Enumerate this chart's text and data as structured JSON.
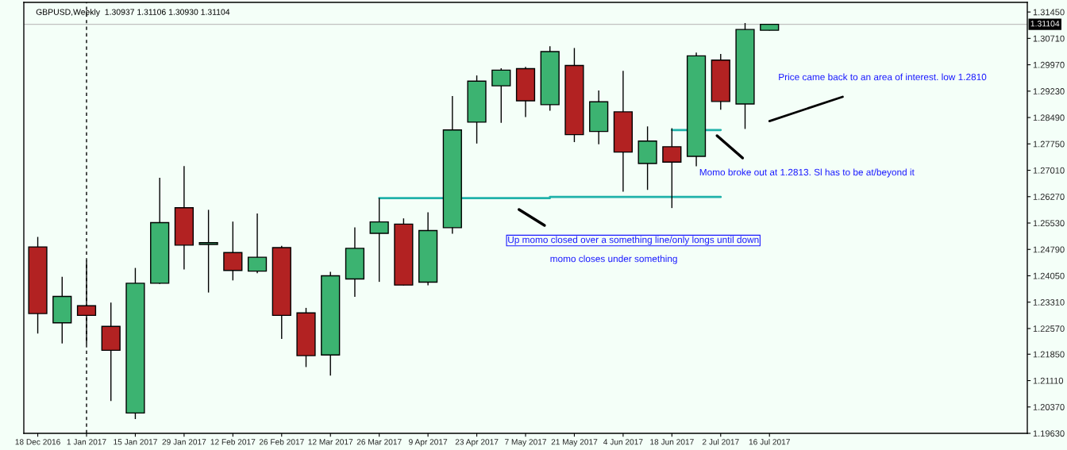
{
  "chart_data": {
    "type": "candlestick",
    "title": "GBPUSD,Weekly  1.30937 1.31106 1.30930 1.31104",
    "x": [
      "2016-12-18",
      "2016-12-25",
      "2017-01-01",
      "2017-01-08",
      "2017-01-15",
      "2017-01-22",
      "2017-01-29",
      "2017-02-05",
      "2017-02-12",
      "2017-02-19",
      "2017-02-26",
      "2017-03-05",
      "2017-03-12",
      "2017-03-19",
      "2017-03-26",
      "2017-04-02",
      "2017-04-09",
      "2017-04-16",
      "2017-04-23",
      "2017-04-30",
      "2017-05-07",
      "2017-05-14",
      "2017-05-21",
      "2017-05-28",
      "2017-06-04",
      "2017-06-11",
      "2017-06-18",
      "2017-06-25",
      "2017-07-02",
      "2017-07-09",
      "2017-07-16"
    ],
    "ohlc": [
      [
        1.2486,
        1.2514,
        1.2243,
        1.2299
      ],
      [
        1.2273,
        1.2402,
        1.2215,
        1.2347
      ],
      [
        1.2321,
        1.2447,
        1.2213,
        1.2294
      ],
      [
        1.2263,
        1.233,
        1.2054,
        1.2196
      ],
      [
        1.202,
        1.2427,
        1.2003,
        1.2384
      ],
      [
        1.2384,
        1.268,
        1.2382,
        1.2554
      ],
      [
        1.2596,
        1.2713,
        1.2423,
        1.2491
      ],
      [
        1.2493,
        1.259,
        1.2358,
        1.2498
      ],
      [
        1.247,
        1.2557,
        1.2392,
        1.242
      ],
      [
        1.2418,
        1.258,
        1.2412,
        1.2457
      ],
      [
        1.2484,
        1.2489,
        1.2228,
        1.2294
      ],
      [
        1.2301,
        1.2315,
        1.2149,
        1.2181
      ],
      [
        1.2183,
        1.2416,
        1.2125,
        1.2405
      ],
      [
        1.2396,
        1.2541,
        1.2346,
        1.2482
      ],
      [
        1.2524,
        1.2623,
        1.2388,
        1.2556
      ],
      [
        1.255,
        1.2566,
        1.2378,
        1.2379
      ],
      [
        1.2387,
        1.2583,
        1.2378,
        1.2532
      ],
      [
        1.254,
        1.2909,
        1.2523,
        1.2814
      ],
      [
        1.2836,
        1.2967,
        1.2776,
        1.2951
      ],
      [
        1.2938,
        1.2987,
        1.2834,
        1.2982
      ],
      [
        1.2986,
        1.2991,
        1.285,
        1.2896
      ],
      [
        1.2885,
        1.3049,
        1.2868,
        1.3034
      ],
      [
        1.2995,
        1.3044,
        1.278,
        1.2801
      ],
      [
        1.281,
        1.2925,
        1.2774,
        1.2893
      ],
      [
        1.2865,
        1.298,
        1.2641,
        1.2752
      ],
      [
        1.272,
        1.2824,
        1.2646,
        1.2783
      ],
      [
        1.2767,
        1.2819,
        1.2595,
        1.2724
      ],
      [
        1.274,
        1.3031,
        1.2712,
        1.3022
      ],
      [
        1.301,
        1.3027,
        1.2871,
        1.2894
      ],
      [
        1.2887,
        1.3114,
        1.2817,
        1.3096
      ],
      [
        1.30937,
        1.31106,
        1.3093,
        1.31104
      ]
    ],
    "colors": [
      "#b22222",
      "#3cb371",
      "#b22222",
      "#b22222",
      "#3cb371",
      "#3cb371",
      "#b22222",
      "#3cb371",
      "#b22222",
      "#3cb371",
      "#b22222",
      "#b22222",
      "#3cb371",
      "#3cb371",
      "#3cb371",
      "#b22222",
      "#3cb371",
      "#3cb371",
      "#3cb371",
      "#3cb371",
      "#b22222",
      "#3cb371",
      "#b22222",
      "#3cb371",
      "#b22222",
      "#3cb371",
      "#b22222",
      "#3cb371",
      "#b22222",
      "#3cb371",
      "#3cb371"
    ],
    "series": [
      {
        "type": "line",
        "color": "#20b2aa",
        "x": [
          "2017-03-26",
          "2017-05-14",
          "2017-05-14",
          "2017-07-02"
        ],
        "values": [
          1.2623,
          1.2623,
          1.2626,
          1.2626
        ]
      },
      {
        "type": "line",
        "color": "#20b2aa",
        "x": [
          "2017-06-18",
          "2017-07-02"
        ],
        "values": [
          1.2814,
          1.2814
        ]
      },
      {
        "type": "line",
        "color": "#000000",
        "x": [
          "2017-07-16",
          "2017-08-06"
        ],
        "values": [
          1.2839,
          1.2907
        ]
      }
    ],
    "ref_lines": [
      {
        "axis": "x",
        "value": "2017-01-01",
        "color": "#000000",
        "line_style": "dashed"
      },
      {
        "axis": "y",
        "value": 1.31104,
        "label": "1.31104",
        "color": "#c0c0c0",
        "line_style": "solid"
      }
    ],
    "annotations": [
      "Up momo closed over a something line/only longs until down",
      "momo closes under something",
      "Momo broke out at 1.2813. Sl has to be at/beyond it",
      "Price came back to an area of interest. low 1.2810"
    ],
    "xlim": [
      "2016-12-14",
      "2017-09-28"
    ],
    "xticks": [
      {
        "value": "2016-12-18",
        "label": "18 Dec 2016"
      },
      {
        "value": "2017-01-01",
        "label": "1 Jan 2017"
      },
      {
        "value": "2017-01-15",
        "label": "15 Jan 2017"
      },
      {
        "value": "2017-01-29",
        "label": "29 Jan 2017"
      },
      {
        "value": "2017-02-12",
        "label": "12 Feb 2017"
      },
      {
        "value": "2017-02-26",
        "label": "26 Feb 2017"
      },
      {
        "value": "2017-03-12",
        "label": "12 Mar 2017"
      },
      {
        "value": "2017-03-26",
        "label": "26 Mar 2017"
      },
      {
        "value": "2017-04-09",
        "label": "9 Apr 2017"
      },
      {
        "value": "2017-04-23",
        "label": "23 Apr 2017"
      },
      {
        "value": "2017-05-07",
        "label": "7 May 2017"
      },
      {
        "value": "2017-05-21",
        "label": "21 May 2017"
      },
      {
        "value": "2017-06-04",
        "label": "4 Jun 2017"
      },
      {
        "value": "2017-06-18",
        "label": "18 Jun 2017"
      },
      {
        "value": "2017-07-02",
        "label": "2 Jul 2017"
      },
      {
        "value": "2017-07-16",
        "label": "16 Jul 2017"
      }
    ],
    "ylim": [
      1.1963,
      1.3172
    ],
    "yticks": [
      {
        "value": 1.3145,
        "label": "1.31450"
      },
      {
        "value": 1.3071,
        "label": "1.30710"
      },
      {
        "value": 1.2997,
        "label": "1.29970"
      },
      {
        "value": 1.2923,
        "label": "1.29230"
      },
      {
        "value": 1.2849,
        "label": "1.28490"
      },
      {
        "value": 1.2775,
        "label": "1.27750"
      },
      {
        "value": 1.2701,
        "label": "1.27010"
      },
      {
        "value": 1.2627,
        "label": "1.26270"
      },
      {
        "value": 1.2553,
        "label": "1.25530"
      },
      {
        "value": 1.2479,
        "label": "1.24790"
      },
      {
        "value": 1.2405,
        "label": "1.24050"
      },
      {
        "value": 1.2331,
        "label": "1.23310"
      },
      {
        "value": 1.2257,
        "label": "1.22570"
      },
      {
        "value": 1.2185,
        "label": "1.21850"
      },
      {
        "value": 1.2111,
        "label": "1.21110"
      },
      {
        "value": 1.2037,
        "label": "1.20370"
      },
      {
        "value": 1.1963,
        "label": "1.19630"
      }
    ],
    "grid": false,
    "legend": false
  }
}
